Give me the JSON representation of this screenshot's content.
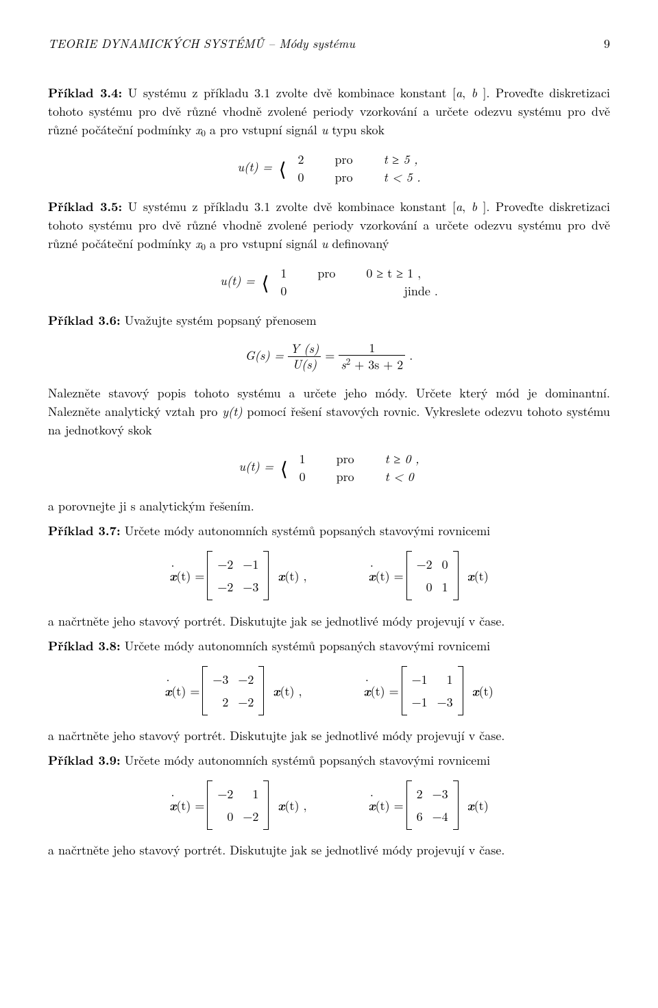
{
  "header": {
    "title": "TEORIE DYNAMICKÝCH SYSTÉMŮ – Módy systému",
    "page": "9"
  },
  "p34": {
    "label": "Příklad 3.4:",
    "text1": " U systému z příkladu 3.1 zvolte dvě kombinace konstant [",
    "a": "a",
    "comma": ", ",
    "b": "b",
    "text2": " ]. Proveďte diskretizaci tohoto systému pro dvě různé vhodně zvolené periody vzorkování a určete odezvu systému pro dvě různé počáteční podmínky ",
    "x0": "x",
    "text3": " a pro vstupní signál ",
    "u": "u",
    "text4": " typu skok",
    "eq_lhs": "u(t) = ",
    "c1v": "2",
    "c1w": "pro",
    "c1c": "t ≥ 5 ,",
    "c2v": "0",
    "c2w": "pro",
    "c2c": "t < 5 ."
  },
  "p35": {
    "label": "Příklad 3.5:",
    "text1": " U systému z příkladu 3.1 zvolte dvě kombinace konstant [",
    "a": "a",
    "comma": ", ",
    "b": "b",
    "text2": " ]. Proveďte diskretizaci tohoto systému pro dvě různé vhodně zvolené periody vzorkování a určete odezvu systému pro dvě různé počáteční podmínky ",
    "x0": "x",
    "text3": " a pro vstupní signál ",
    "u": "u",
    "text4": " definovaný",
    "eq_lhs": "u(t) = ",
    "c1v": "1",
    "c1w": "pro",
    "c1c": "0 ≥ t ≥ 1 ,",
    "c2v": "0",
    "c2w": "",
    "c2c": "jinde ."
  },
  "p36": {
    "label": "Příklad 3.6:",
    "text1": " Uvažujte systém popsaný přenosem",
    "gs": "G(s) = ",
    "num1": "Y (s)",
    "den1": "U(s)",
    "eq": " = ",
    "num2": "1",
    "den2a": "s",
    "den2b": " + 3s + 2",
    "dot": " .",
    "text2": "Nalezněte stavový popis tohoto systému a určete jeho módy. Určete který mód je dominantní. Nalezněte analytický vztah pro ",
    "yt": "y(t)",
    "text3": " pomocí řešení stavových rovnic. Vykreslete odezvu tohoto systému na jednotkový skok",
    "eq_lhs": "u(t) = ",
    "c1v": "1",
    "c1w": "pro",
    "c1c": "t ≥ 0 ,",
    "c2v": "0",
    "c2w": "pro",
    "c2c": "t < 0",
    "text4": "a porovnejte ji s analytickým řešením."
  },
  "p37": {
    "label": "Příklad 3.7:",
    "text1": " Určete módy autonomních systémů popsaných stavovými rovnicemi",
    "m1": [
      "−2",
      "−1",
      "−2",
      "−3"
    ],
    "m2": [
      "−2",
      "0",
      "0",
      "1"
    ],
    "text2": "a načrtněte jeho stavový portrét. Diskutujte jak se jednotlivé módy projevují v čase."
  },
  "p38": {
    "label": "Příklad 3.8:",
    "text1": " Určete módy autonomních systémů popsaných stavovými rovnicemi",
    "m1": [
      "−3",
      "−2",
      "2",
      "−2"
    ],
    "m2": [
      "−1",
      "1",
      "−1",
      "−3"
    ],
    "text2": "a načrtněte jeho stavový portrét. Diskutujte jak se jednotlivé módy projevují v čase."
  },
  "p39": {
    "label": "Příklad 3.9:",
    "text1": " Určete módy autonomních systémů popsaných stavovými rovnicemi",
    "m1": [
      "−2",
      "1",
      "0",
      "−2"
    ],
    "m2": [
      "2",
      "−3",
      "6",
      "−4"
    ],
    "text2": "a načrtněte jeho stavový portrét. Diskutujte jak se jednotlivé módy projevují v čase."
  },
  "mat": {
    "xdot": "x",
    "lhs": "(t) = ",
    "rhs": "(t)",
    "rhs_comma": "(t) ,"
  }
}
